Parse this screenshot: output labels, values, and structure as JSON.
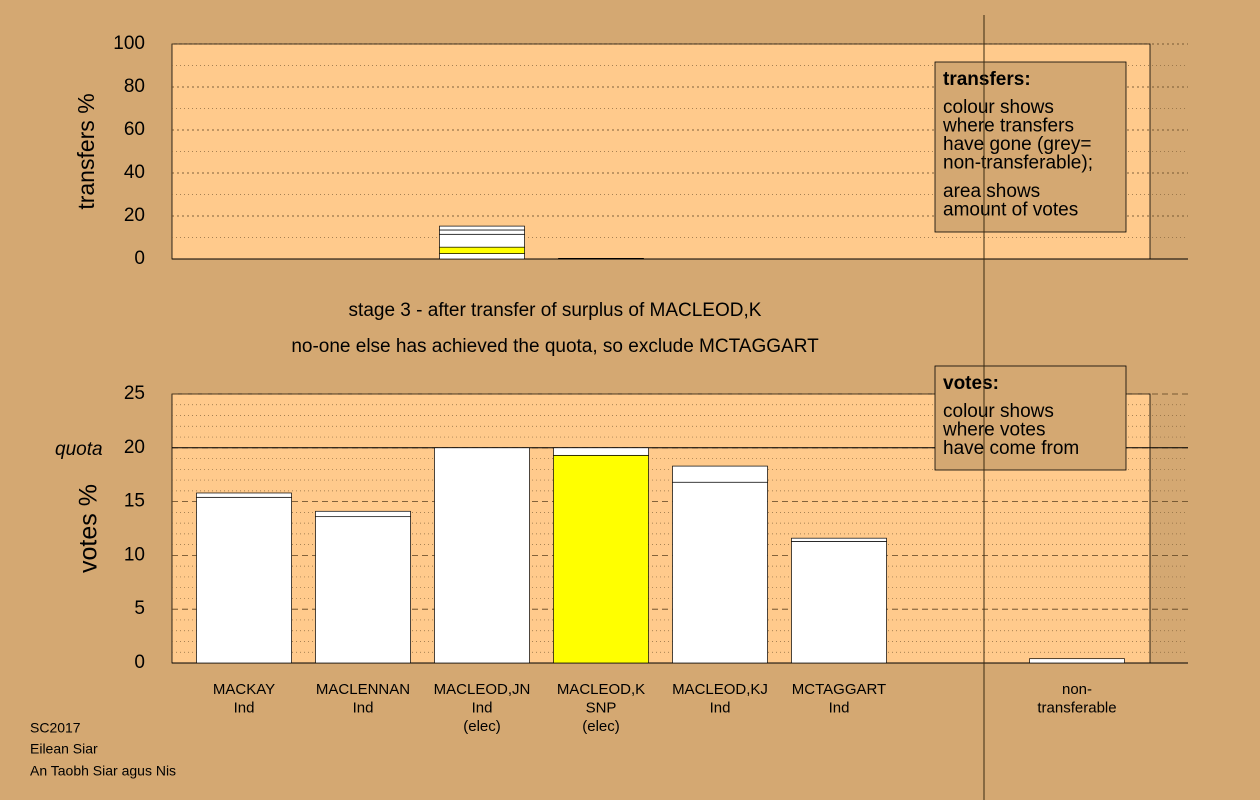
{
  "chart_data": [
    {
      "type": "stacked-bar",
      "ylabel": "transfers %",
      "ylim": [
        0,
        100
      ],
      "yticks": [
        0,
        20,
        40,
        60,
        80,
        100
      ],
      "minor_yticks": [
        10,
        30,
        50,
        70,
        90
      ],
      "bars": [
        {
          "column": 2,
          "segments": [
            {
              "value": 2.5,
              "color": "#ffffff"
            },
            {
              "value": 3,
              "color": "#ffff00"
            },
            {
              "value": 6,
              "color": "#ffffff"
            },
            {
              "value": 2,
              "color": "#ffffff"
            },
            {
              "value": 1.8,
              "color": "#ffffff"
            }
          ]
        },
        {
          "column": 3,
          "segments": [
            {
              "value": 0.3,
              "color": "#ffffff"
            }
          ]
        }
      ],
      "legend": {
        "title": "transfers:",
        "paragraphs": [
          [
            "colour shows",
            "where transfers",
            "have gone (grey=",
            "non-transferable);"
          ],
          [
            "area shows",
            "amount of votes"
          ]
        ]
      }
    },
    {
      "type": "stacked-bar",
      "ylabel": "votes %",
      "ylim": [
        0,
        25
      ],
      "yticks": [
        0,
        5,
        10,
        15,
        20,
        25
      ],
      "minor_yticks": [
        1,
        2,
        3,
        4,
        6,
        7,
        8,
        9,
        11,
        12,
        13,
        14,
        16,
        17,
        18,
        19,
        21,
        22,
        23,
        24
      ],
      "quota": {
        "value": 20,
        "label": "quota"
      },
      "categories": [
        [
          "MACKAY",
          "Ind"
        ],
        [
          "MACLENNAN",
          "Ind"
        ],
        [
          "MACLEOD,JN",
          "Ind",
          "(elec)"
        ],
        [
          "MACLEOD,K",
          "SNP",
          "(elec)"
        ],
        [
          "MACLEOD,KJ",
          "Ind"
        ],
        [
          "MCTAGGART",
          "Ind"
        ],
        [
          "non-",
          "transferable"
        ]
      ],
      "bars": [
        {
          "column": 0,
          "segments": [
            {
              "value": 15.4,
              "color": "#ffffff"
            },
            {
              "value": 0.4,
              "color": "#ffffff"
            }
          ]
        },
        {
          "column": 1,
          "segments": [
            {
              "value": 13.6,
              "color": "#ffffff"
            },
            {
              "value": 0.5,
              "color": "#ffffff"
            }
          ]
        },
        {
          "column": 2,
          "segments": [
            {
              "value": 20,
              "color": "#ffffff"
            }
          ]
        },
        {
          "column": 3,
          "segments": [
            {
              "value": 19.3,
              "color": "#ffff00"
            },
            {
              "value": 0.7,
              "color": "#ffffff"
            }
          ]
        },
        {
          "column": 4,
          "segments": [
            {
              "value": 16.8,
              "color": "#ffffff"
            },
            {
              "value": 1.5,
              "color": "#ffffff"
            }
          ]
        },
        {
          "column": 5,
          "segments": [
            {
              "value": 11.3,
              "color": "#ffffff"
            },
            {
              "value": 0.3,
              "color": "#ffffff"
            }
          ]
        },
        {
          "column": 6,
          "segments": [
            {
              "value": 0.4,
              "color": "#ffffff"
            }
          ]
        }
      ],
      "legend": {
        "title": "votes:",
        "paragraphs": [
          [
            "colour shows",
            "where votes",
            "have come from"
          ]
        ]
      }
    }
  ],
  "stage_text": [
    "stage 3 - after transfer of surplus of MACLEOD,K",
    "no-one else has achieved the quota, so exclude MCTAGGART"
  ],
  "footer": [
    "SC2017",
    "Eilean Siar",
    "An Taobh Siar agus Nis"
  ]
}
